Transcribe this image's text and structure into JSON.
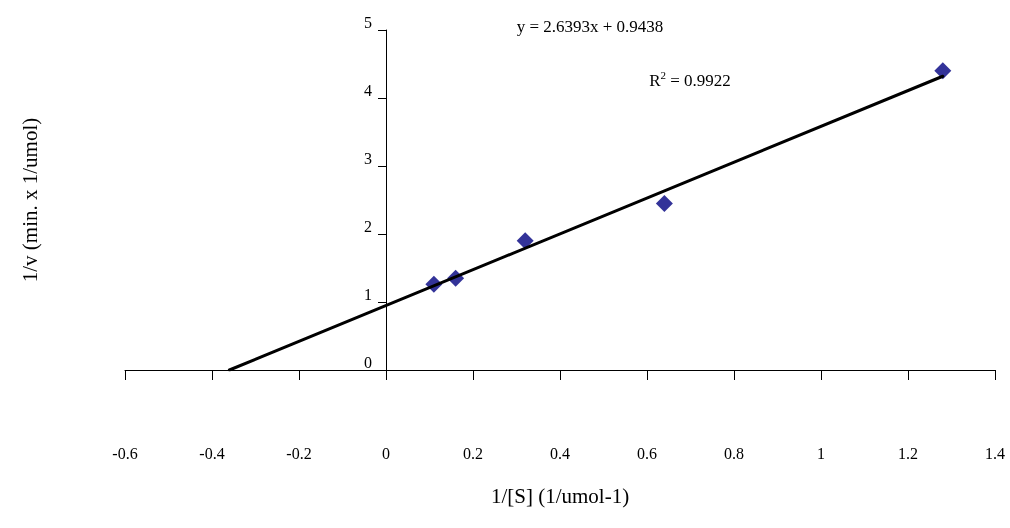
{
  "chart_data": {
    "type": "scatter",
    "xlabel": "1/[S] (1/umol-1)",
    "ylabel": "1/v (min. x 1/umol)",
    "annotations": [
      "y = 2.6393x + 0.9438",
      "R$^{2}$ = 0.9922"
    ],
    "series": [
      {
        "type": "scatter",
        "color": "#000080",
        "marker": "diamond",
        "x": [
          0.11,
          0.16,
          0.32,
          0.64,
          1.28
        ],
        "values": [
          1.26,
          1.35,
          1.9,
          2.45,
          4.4
        ]
      },
      {
        "type": "line",
        "color": "#000000",
        "marker": "none",
        "line_style": "solid",
        "x": [
          -0.36,
          1.28
        ],
        "values": [
          0,
          4.32
        ]
      }
    ],
    "xlim": [
      -0.6,
      1.4
    ],
    "xticks": [
      -0.6,
      -0.4,
      -0.2,
      0,
      0.2,
      0.4,
      0.6,
      0.8,
      1,
      1.2,
      1.4
    ],
    "ylim": [
      0,
      5
    ],
    "yticks": [
      0,
      1,
      2,
      3,
      4,
      5
    ],
    "grid": false
  }
}
